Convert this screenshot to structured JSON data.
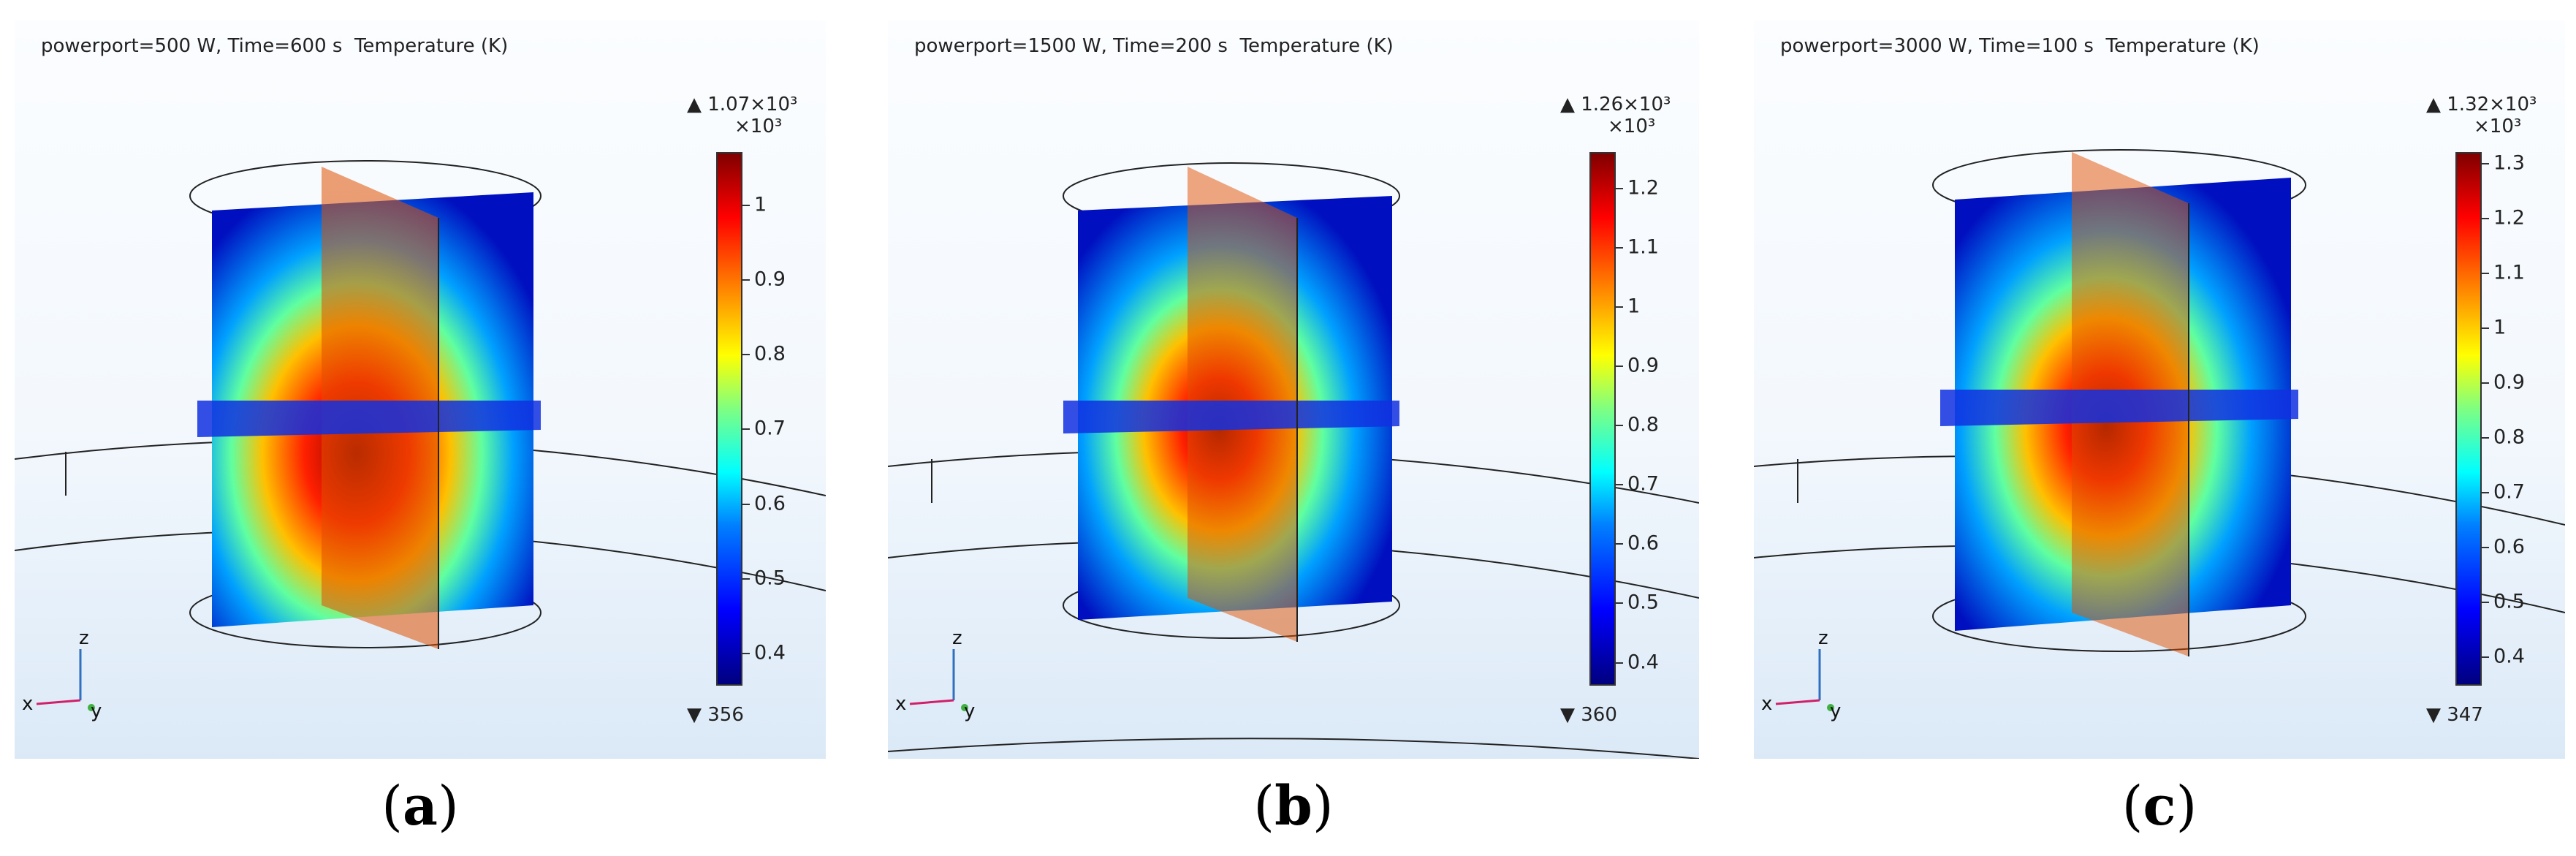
{
  "panels": [
    {
      "title": "powerport=500 W, Time=600 s  Temperature (K)",
      "colorbar": {
        "max": "▲ 1.07×10³",
        "multiplier": "×10³",
        "min": "▼ 356",
        "ticks": [
          "1",
          "0.9",
          "0.8",
          "0.7",
          "0.6",
          "0.5",
          "0.4"
        ],
        "tick_values": [
          1.0,
          0.9,
          0.8,
          0.7,
          0.6,
          0.5,
          0.4
        ],
        "range": [
          0.356,
          1.07
        ]
      },
      "axes": {
        "x": "x",
        "y": "y",
        "z": "z"
      },
      "caption_letter": "a"
    },
    {
      "title": "powerport=1500 W, Time=200 s  Temperature (K)",
      "colorbar": {
        "max": "▲ 1.26×10³",
        "multiplier": "×10³",
        "min": "▼ 360",
        "ticks": [
          "1.2",
          "1.1",
          "1",
          "0.9",
          "0.8",
          "0.7",
          "0.6",
          "0.5",
          "0.4"
        ],
        "tick_values": [
          1.2,
          1.1,
          1.0,
          0.9,
          0.8,
          0.7,
          0.6,
          0.5,
          0.4
        ],
        "range": [
          0.36,
          1.26
        ]
      },
      "axes": {
        "x": "x",
        "y": "y",
        "z": "z"
      },
      "caption_letter": "b"
    },
    {
      "title": "powerport=3000 W, Time=100 s  Temperature (K)",
      "colorbar": {
        "max": "▲ 1.32×10³",
        "multiplier": "×10³",
        "min": "▼ 347",
        "ticks": [
          "1.3",
          "1.2",
          "1.1",
          "1",
          "0.9",
          "0.8",
          "0.7",
          "0.6",
          "0.5",
          "0.4"
        ],
        "tick_values": [
          1.3,
          1.2,
          1.1,
          1.0,
          0.9,
          0.8,
          0.7,
          0.6,
          0.5,
          0.4
        ],
        "range": [
          0.347,
          1.32
        ]
      },
      "axes": {
        "x": "x",
        "y": "y",
        "z": "z"
      },
      "caption_letter": "c"
    }
  ],
  "colors": {
    "hot": "#800000",
    "cold": "#00007f"
  }
}
